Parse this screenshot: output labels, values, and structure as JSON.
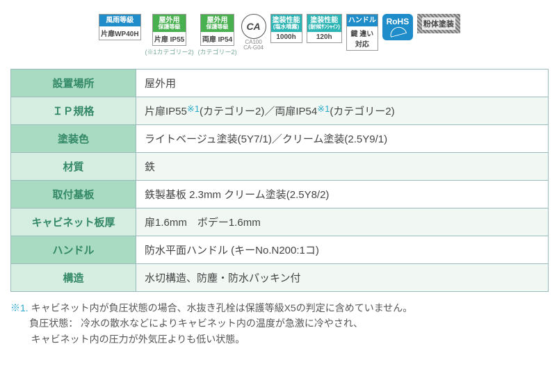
{
  "colors": {
    "blue": "#1e8dc9",
    "green": "#49b050",
    "aqua": "#2db4b4",
    "rohs": "#1e8dc9",
    "header_dark": "#a8dbc2",
    "header_light": "#d5eee1",
    "cell_alt": "#f1f8f4",
    "accent_text": "#338866",
    "ref_color": "#2aa8c9"
  },
  "badges": [
    {
      "top": "風雨等級",
      "bot": "片扉WP40H",
      "topColor": "#1e8dc9",
      "sub": ""
    },
    {
      "top": "屋外用\n保護等級",
      "bot": "片扉 IP55",
      "topColor": "#49b050",
      "sub": "(※1カテゴリー2)"
    },
    {
      "top": "屋外用\n保護等級",
      "bot": "両扉 IP54",
      "topColor": "#49b050",
      "sub": "(カテゴリー2)"
    },
    {
      "caText": "CA",
      "caSub1": "CA100",
      "caSub2": "CA-G04"
    },
    {
      "top": "塗装性能\n(塩水噴霧)",
      "bot": "1000h",
      "topColor": "#2db4b4",
      "sub": ""
    },
    {
      "top": "塗装性能\n(耐候ｻﾝｼｬｲﾝ)",
      "bot": "120h",
      "topColor": "#2db4b4",
      "sub": ""
    },
    {
      "top": "ハンドル",
      "bot": "鍵 違い\n対応",
      "topColor": "#1e8dc9",
      "sub": ""
    },
    {
      "rohs": "RoHS"
    },
    {
      "powder": "粉体塗装"
    }
  ],
  "table": [
    {
      "label": "設置場所",
      "value": "屋外用"
    },
    {
      "label": "ＩＰ規格",
      "value_parts": [
        "片扉IP55",
        {
          "ref": "※1"
        },
        "(カテゴリー2)／両扉IP54",
        {
          "ref": "※1"
        },
        "(カテゴリー2)"
      ]
    },
    {
      "label": "塗装色",
      "value": "ライトベージュ塗装(5Y7/1)／クリーム塗装(2.5Y9/1)"
    },
    {
      "label": "材質",
      "value": "鉄"
    },
    {
      "label": "取付基板",
      "value": "鉄製基板 2.3mm クリーム塗装(2.5Y8/2)"
    },
    {
      "label": "キャビネット板厚",
      "value": "扉1.6mm　ボデー1.6mm"
    },
    {
      "label": "ハンドル",
      "value": "防水平面ハンドル (キーNo.N200:1コ)"
    },
    {
      "label": "構造",
      "value": "水切構造、防塵・防水パッキン付"
    }
  ],
  "footnote": {
    "ref_label": "※1.",
    "lines": [
      "キャビネット内が負圧状態の場合、水抜き孔栓は保護等級X5の判定に含めていません。",
      "負圧状態： 冷水の散水などによりキャビネット内の温度が急激に冷やされ、",
      "キャビネット内の圧力が外気圧よりも低い状態。"
    ]
  }
}
